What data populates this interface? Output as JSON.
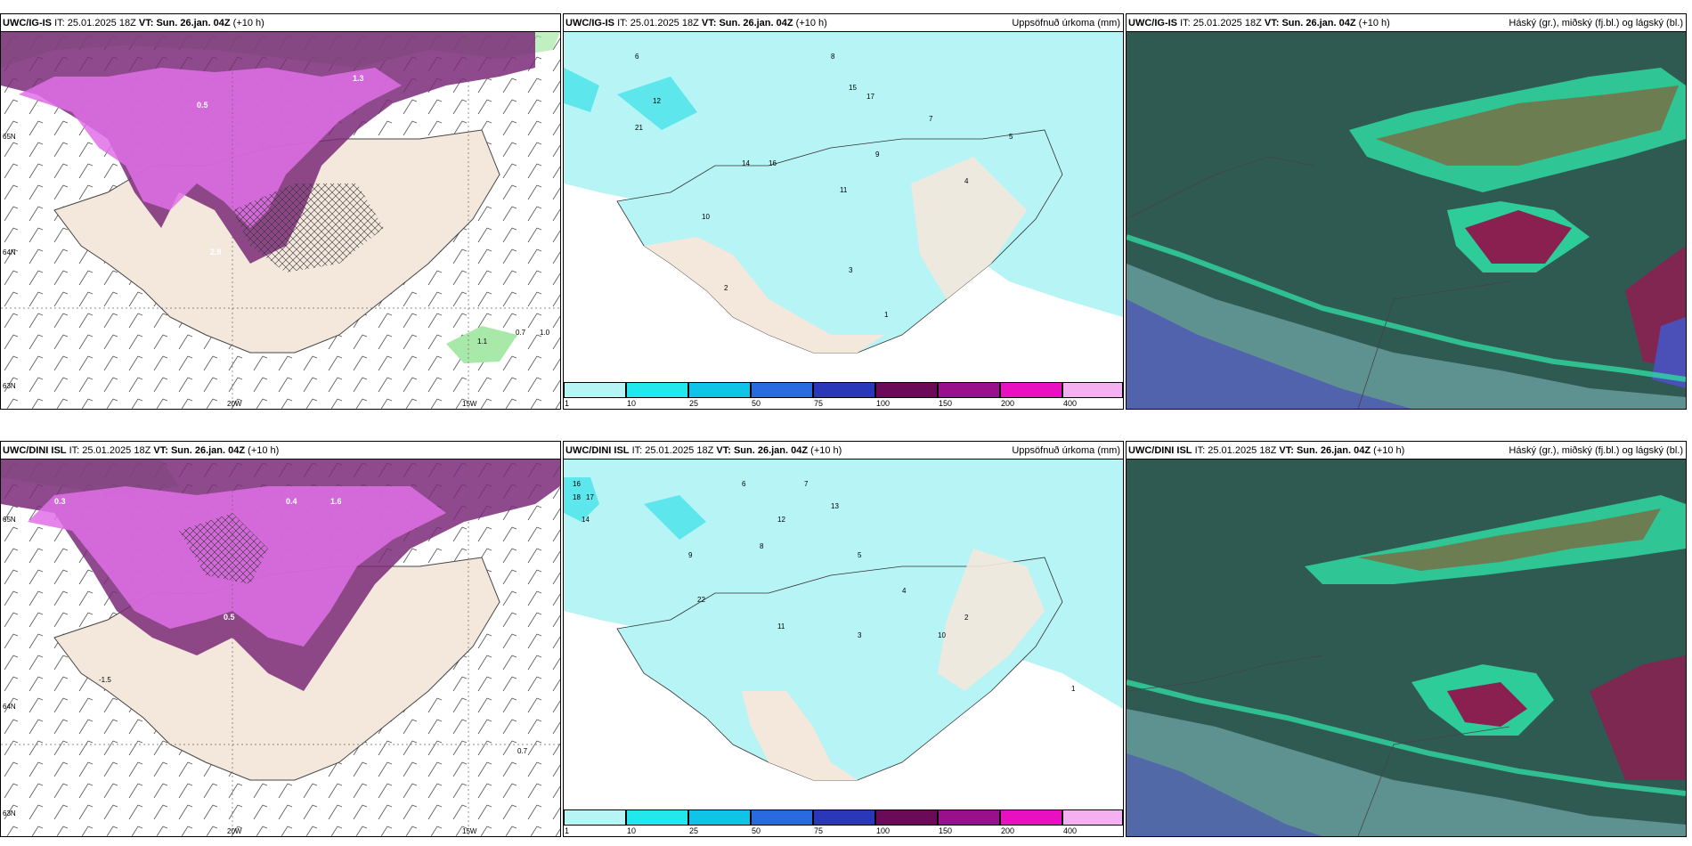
{
  "colors": {
    "land": "#f4e8dc",
    "precip_light": "#b7f4f6",
    "precip_mid": "#5de6ec",
    "purple_dark": "#7a2a78",
    "purple_light": "#e070e8",
    "cloud_bg": "#2f5a52",
    "cloud_green": "#2fd8a0",
    "cloud_red": "#8a2050",
    "cloud_blue": "#4a50b8"
  },
  "panels": [
    {
      "id": "ig-is-wind",
      "model": "UWC/IG-IS",
      "it_label": "IT:",
      "it": "25.01.2025 18Z",
      "vt_label": "VT: Sun. 26.jan. 04Z",
      "lead": "(+10 h)",
      "right": "",
      "lon_labels": [
        "20W",
        "15W"
      ],
      "lat_labels": [
        "65N",
        "64N",
        "63N"
      ],
      "values": [
        "0.7",
        "1.0",
        "1.1",
        "2.9",
        "1.3",
        "0.5"
      ]
    },
    {
      "id": "ig-is-precip",
      "model": "UWC/IG-IS",
      "it_label": "IT:",
      "it": "25.01.2025 18Z",
      "vt_label": "VT: Sun. 26.jan. 04Z",
      "lead": "(+10 h)",
      "right": "Uppsöfnuð úrkoma (mm)",
      "values": [
        "6",
        "8",
        "15",
        "17",
        "12",
        "21",
        "9",
        "11",
        "7",
        "4",
        "5",
        "3",
        "2",
        "1",
        "10",
        "14",
        "16"
      ]
    },
    {
      "id": "ig-is-cloud",
      "model": "UWC/IG-IS",
      "it_label": "IT:",
      "it": "25.01.2025 18Z",
      "vt_label": "VT: Sun. 26.jan. 04Z",
      "lead": "(+10 h)",
      "right": "Háský (gr.), miðský (fj.bl.) og lágský (bl.)"
    },
    {
      "id": "dini-wind",
      "model": "UWC/DINI ISL",
      "it_label": "IT:",
      "it": "25.01.2025 18Z",
      "vt_label": "VT: Sun. 26.jan. 04Z",
      "lead": "(+10 h)",
      "right": "",
      "lon_labels": [
        "20W",
        "15W"
      ],
      "lat_labels": [
        "65N",
        "64N",
        "63N"
      ],
      "values": [
        "-1.5",
        "0.7",
        "0.3",
        "0.4",
        "0.5",
        "1.6"
      ]
    },
    {
      "id": "dini-precip",
      "model": "UWC/DINI ISL",
      "it_label": "IT:",
      "it": "25.01.2025 18Z",
      "vt_label": "VT: Sun. 26.jan. 04Z",
      "lead": "(+10 h)",
      "right": "Uppsöfnuð úrkoma (mm)",
      "values": [
        "16",
        "18",
        "17",
        "14",
        "13",
        "12",
        "22",
        "11",
        "9",
        "7",
        "8",
        "5",
        "4",
        "3",
        "2",
        "1",
        "6",
        "10"
      ]
    },
    {
      "id": "dini-cloud",
      "model": "UWC/DINI ISL",
      "it_label": "IT:",
      "it": "25.01.2025 18Z",
      "vt_label": "VT: Sun. 26.jan. 04Z",
      "lead": "(+10 h)",
      "right": "Háský (gr.), miðský (fj.bl.) og lágský (bl.)"
    }
  ],
  "colorbar": {
    "labels": [
      "1",
      "10",
      "25",
      "50",
      "75",
      "100",
      "150",
      "200",
      "400"
    ],
    "colors": [
      "#b7f4f6",
      "#22e8ec",
      "#10c4e8",
      "#2a6ae0",
      "#2838b8",
      "#6a0a58",
      "#9a108a",
      "#e810c0",
      "#f4b0f0"
    ]
  }
}
